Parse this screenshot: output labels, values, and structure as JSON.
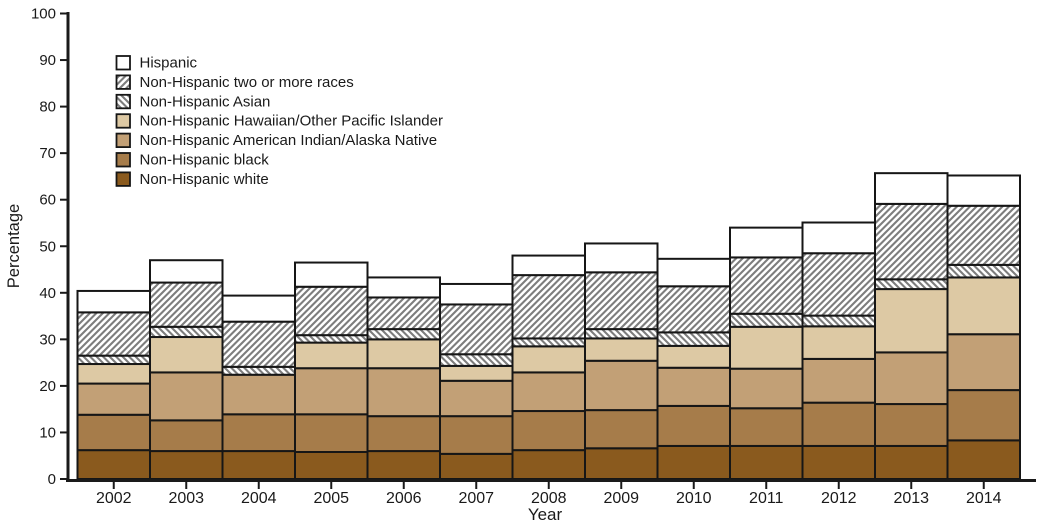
{
  "chart_data": {
    "type": "bar",
    "stacked": true,
    "title": "",
    "xlabel": "Year",
    "ylabel": "Percentage",
    "ylim": [
      0,
      100
    ],
    "ytick_interval": 10,
    "yticks": [
      0,
      10,
      20,
      30,
      40,
      50,
      60,
      70,
      80,
      90,
      100
    ],
    "grid": false,
    "categories": [
      "2002",
      "2003",
      "2004",
      "2005",
      "2006",
      "2007",
      "2008",
      "2009",
      "2010",
      "2011",
      "2012",
      "2013",
      "2014"
    ],
    "series_note": "series listed bottom-to-top of the stack; values are segment sizes in percent",
    "series": [
      {
        "key": "nh_white",
        "name": "Non-Hispanic white",
        "swatch": "solid",
        "color": "#8a5a1e",
        "values": [
          6.2,
          6.0,
          6.0,
          5.8,
          6.0,
          5.4,
          6.2,
          6.6,
          7.1,
          7.1,
          7.1,
          7.1,
          8.3
        ]
      },
      {
        "key": "nh_black",
        "name": "Non-Hispanic black",
        "swatch": "solid",
        "color": "#a67c4a",
        "values": [
          7.6,
          6.6,
          7.9,
          8.1,
          7.5,
          8.1,
          8.4,
          8.2,
          8.6,
          8.1,
          9.3,
          9.0,
          10.8
        ]
      },
      {
        "key": "nh_american_indian",
        "name": "Non-Hispanic American Indian/Alaska Native",
        "swatch": "solid",
        "color": "#c2a076",
        "values": [
          6.7,
          10.3,
          8.5,
          9.9,
          10.3,
          7.6,
          8.3,
          10.6,
          8.2,
          8.5,
          9.4,
          11.1,
          12.0
        ]
      },
      {
        "key": "nh_hawaiian",
        "name": "Non-Hispanic Hawaiian/Other Pacific Islander",
        "swatch": "solid",
        "color": "#ddc9a4",
        "values": [
          4.2,
          7.6,
          0.0,
          5.5,
          6.2,
          3.2,
          5.6,
          4.8,
          4.7,
          9.0,
          7.0,
          13.6,
          12.2
        ]
      },
      {
        "key": "nh_asian",
        "name": "Non-Hispanic Asian",
        "swatch": "hatch-backslash",
        "color": "#7d7d7d",
        "values": [
          1.8,
          2.2,
          1.7,
          1.6,
          2.2,
          2.5,
          1.7,
          2.0,
          2.9,
          2.8,
          2.3,
          2.1,
          2.7
        ]
      },
      {
        "key": "nh_two_or_more",
        "name": "Non-Hispanic two or more races",
        "swatch": "hatch-slash",
        "color": "#7d7d7d",
        "values": [
          9.3,
          9.5,
          9.7,
          10.4,
          6.8,
          10.7,
          13.6,
          12.2,
          9.9,
          12.1,
          13.4,
          16.2,
          12.7
        ]
      },
      {
        "key": "hispanic",
        "name": "Hispanic",
        "swatch": "solid",
        "color": "#ffffff",
        "values": [
          4.6,
          4.8,
          5.6,
          5.2,
          4.3,
          4.4,
          4.2,
          6.2,
          5.9,
          6.4,
          6.6,
          6.6,
          6.5
        ]
      }
    ],
    "stack_totals": [
      40.4,
      47.0,
      39.4,
      46.5,
      43.3,
      41.9,
      48.0,
      50.6,
      47.3,
      54.0,
      55.1,
      65.7,
      65.2
    ],
    "legend": {
      "position": "upper-left",
      "entries_top_to_bottom": [
        "Hispanic",
        "Non-Hispanic two or more races",
        "Non-Hispanic Asian",
        "Non-Hispanic Hawaiian/Other Pacific Islander",
        "Non-Hispanic American Indian/Alaska Native",
        "Non-Hispanic black",
        "Non-Hispanic white"
      ]
    },
    "colors": {
      "axis": "#1a1a1a",
      "bar_border": "#161616",
      "hatch_line": "#7d7d7d",
      "hatch_background": "#ffffff",
      "background": "#ffffff"
    }
  }
}
